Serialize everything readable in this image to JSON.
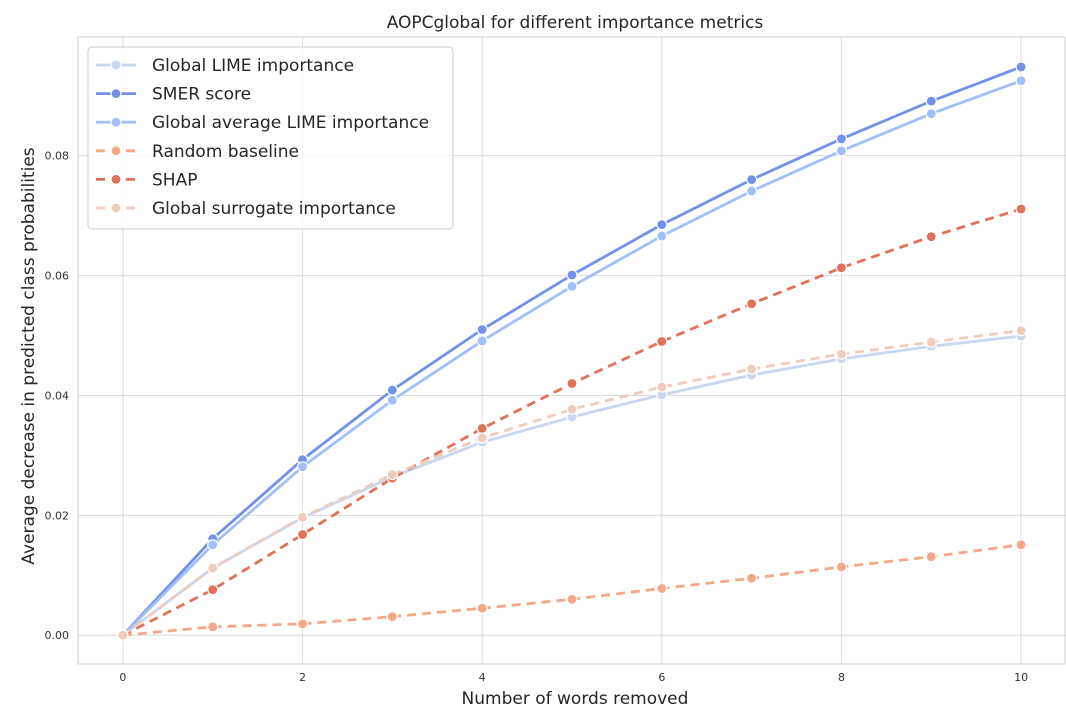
{
  "chart_data": {
    "type": "line",
    "title": "AOPCglobal for different importance metrics",
    "xlabel": "Number of words removed",
    "ylabel": "Average decrease in predicted class probabilities",
    "x": [
      0,
      1,
      2,
      3,
      4,
      5,
      6,
      7,
      8,
      9,
      10
    ],
    "xlim": [
      -0.5,
      10.5
    ],
    "ylim": [
      -0.0048,
      0.0998
    ],
    "xticks": [
      0,
      2,
      4,
      6,
      8,
      10
    ],
    "yticks": [
      0.0,
      0.02,
      0.04,
      0.06,
      0.08
    ],
    "xtick_labels": [
      "0",
      "2",
      "4",
      "6",
      "8",
      "10"
    ],
    "ytick_labels": [
      "0.00",
      "0.02",
      "0.04",
      "0.06",
      "0.08"
    ],
    "grid": true,
    "legend_position": "top-left",
    "series": [
      {
        "name": "Global LIME importance",
        "color": "#c9d7ef",
        "style": "solid",
        "values": [
          0.0,
          0.0112,
          0.0196,
          0.0264,
          0.0322,
          0.0364,
          0.0401,
          0.0434,
          0.0461,
          0.0482,
          0.0499
        ]
      },
      {
        "name": "SMER score",
        "color": "#7391ea",
        "style": "solid",
        "values": [
          0.0,
          0.0161,
          0.0293,
          0.0409,
          0.051,
          0.0601,
          0.0685,
          0.076,
          0.0828,
          0.0891,
          0.0948
        ]
      },
      {
        "name": "Global average LIME importance",
        "color": "#a2bff8",
        "style": "solid",
        "values": [
          0.0,
          0.0151,
          0.0281,
          0.0392,
          0.0491,
          0.0582,
          0.0666,
          0.0741,
          0.0808,
          0.087,
          0.0925
        ]
      },
      {
        "name": "Random baseline",
        "color": "#f4a889",
        "style": "dashed",
        "values": [
          0.0,
          0.0014,
          0.0019,
          0.0031,
          0.0045,
          0.006,
          0.0078,
          0.0095,
          0.0114,
          0.0131,
          0.0151
        ]
      },
      {
        "name": "SHAP",
        "color": "#e2715a",
        "style": "dashed",
        "values": [
          0.0,
          0.0076,
          0.0168,
          0.0262,
          0.0345,
          0.042,
          0.049,
          0.0553,
          0.0613,
          0.0665,
          0.0711
        ]
      },
      {
        "name": "Global surrogate importance",
        "color": "#efcdbc",
        "style": "dashed",
        "values": [
          0.0,
          0.0112,
          0.0197,
          0.0268,
          0.0329,
          0.0377,
          0.0414,
          0.0444,
          0.0469,
          0.0489,
          0.0508
        ]
      }
    ]
  }
}
